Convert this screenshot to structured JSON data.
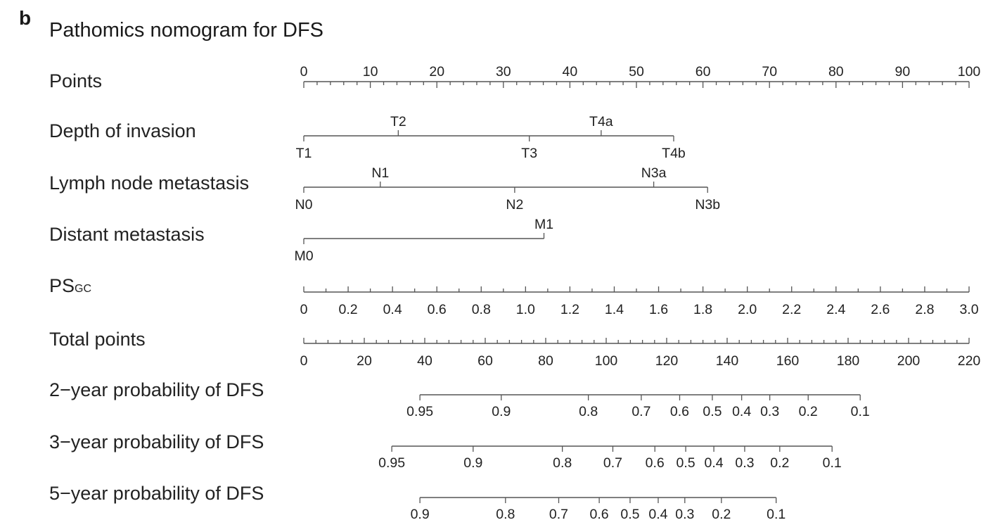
{
  "panel_letter": "b",
  "title": "Pathomics nomogram for DFS",
  "chart_data": {
    "type": "nomogram",
    "points_scale": {
      "label": "Points",
      "min": 0,
      "max": 100,
      "major_step": 10,
      "minor_step": 2
    },
    "categorical_rows": [
      {
        "label": "Depth of invasion",
        "levels": [
          {
            "name": "T1",
            "points": 0,
            "label_side": "below"
          },
          {
            "name": "T2",
            "points": 14.2,
            "label_side": "above"
          },
          {
            "name": "T3",
            "points": 33.9,
            "label_side": "below"
          },
          {
            "name": "T4a",
            "points": 44.7,
            "label_side": "above"
          },
          {
            "name": "T4b",
            "points": 55.6,
            "label_side": "below"
          }
        ]
      },
      {
        "label": "Lymph node metastasis",
        "levels": [
          {
            "name": "N0",
            "points": 0,
            "label_side": "below"
          },
          {
            "name": "N1",
            "points": 11.5,
            "label_side": "above"
          },
          {
            "name": "N2",
            "points": 31.7,
            "label_side": "below"
          },
          {
            "name": "N3a",
            "points": 52.6,
            "label_side": "above"
          },
          {
            "name": "N3b",
            "points": 60.7,
            "label_side": "below"
          }
        ]
      },
      {
        "label": "Distant metastasis",
        "levels": [
          {
            "name": "M0",
            "points": 0,
            "label_side": "below"
          },
          {
            "name": "M1",
            "points": 36.1,
            "label_side": "above"
          }
        ]
      }
    ],
    "continuous_rows": [
      {
        "label_main": "PS",
        "label_sub": "GC",
        "min": 0,
        "max": 3.0,
        "points_at_min": 0,
        "points_at_max": 100,
        "tick_labels": [
          "0",
          "0.2",
          "0.4",
          "0.6",
          "0.8",
          "1.0",
          "1.2",
          "1.4",
          "1.6",
          "1.8",
          "2.0",
          "2.2",
          "2.4",
          "2.6",
          "2.8",
          "3.0"
        ],
        "minor_step": 0.1
      }
    ],
    "total_points_scale": {
      "label": "Total points",
      "min": 0,
      "max": 220,
      "major_step": 20,
      "minor_step": 4
    },
    "probability_rows": [
      {
        "label": "2−year probability of DFS",
        "ticks": [
          {
            "label": "0.95",
            "total_points": 38.4
          },
          {
            "label": "0.9",
            "total_points": 65.3
          },
          {
            "label": "0.8",
            "total_points": 94.1
          },
          {
            "label": "0.7",
            "total_points": 111.6
          },
          {
            "label": "0.6",
            "total_points": 124.3
          },
          {
            "label": "0.5",
            "total_points": 135.1
          },
          {
            "label": "0.4",
            "total_points": 144.8
          },
          {
            "label": "0.3",
            "total_points": 154.1
          },
          {
            "label": "0.2",
            "total_points": 166.8
          },
          {
            "label": "0.1",
            "total_points": 184.0
          }
        ]
      },
      {
        "label": "3−year probability of DFS",
        "ticks": [
          {
            "label": "0.95",
            "total_points": 29.1
          },
          {
            "label": "0.9",
            "total_points": 56.0
          },
          {
            "label": "0.8",
            "total_points": 85.5
          },
          {
            "label": "0.7",
            "total_points": 102.2
          },
          {
            "label": "0.6",
            "total_points": 116.1
          },
          {
            "label": "0.5",
            "total_points": 126.3
          },
          {
            "label": "0.4",
            "total_points": 135.6
          },
          {
            "label": "0.3",
            "total_points": 145.8
          },
          {
            "label": "0.2",
            "total_points": 157.4
          },
          {
            "label": "0.1",
            "total_points": 174.7
          }
        ]
      },
      {
        "label": "5−year probability of DFS",
        "ticks": [
          {
            "label": "0.9",
            "total_points": 38.4
          },
          {
            "label": "0.8",
            "total_points": 66.7
          },
          {
            "label": "0.7",
            "total_points": 84.3
          },
          {
            "label": "0.6",
            "total_points": 97.7
          },
          {
            "label": "0.5",
            "total_points": 107.9
          },
          {
            "label": "0.4",
            "total_points": 117.2
          },
          {
            "label": "0.3",
            "total_points": 126.0
          },
          {
            "label": "0.2",
            "total_points": 138.1
          },
          {
            "label": "0.1",
            "total_points": 156.2
          }
        ]
      }
    ]
  }
}
